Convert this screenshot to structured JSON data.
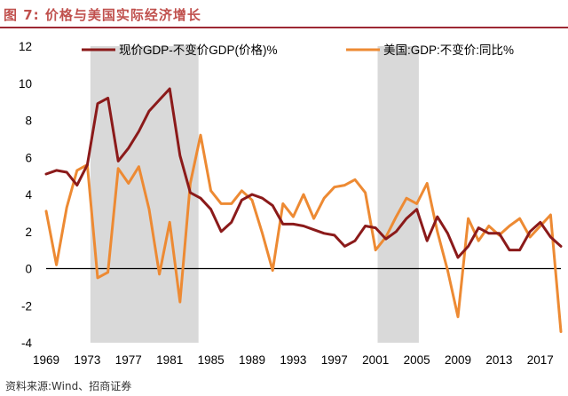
{
  "title": "图 7:  价格与美国实际经济增长",
  "source": "资料来源:Wind、招商证券",
  "colors": {
    "title": "#c0504d",
    "shade": "#d9d9d9",
    "series1": "#8b1a1a",
    "series2": "#ed8a33",
    "zero_line": "#000000"
  },
  "chart_data": {
    "type": "line",
    "xlim": [
      1969,
      2019
    ],
    "ylim": [
      -4,
      12
    ],
    "x_ticks": [
      1969,
      1973,
      1977,
      1981,
      1985,
      1989,
      1993,
      1997,
      2001,
      2005,
      2009,
      2013,
      2017
    ],
    "y_ticks": [
      -4,
      -2,
      0,
      2,
      4,
      6,
      8,
      10,
      12
    ],
    "grid": false,
    "legend_position": "top",
    "shaded_periods": [
      [
        1973.3,
        1983.8
      ],
      [
        2001.2,
        2005.2
      ]
    ],
    "series": [
      {
        "name": "现价GDP-不变价GDP(价格)%",
        "color": "#8b1a1a",
        "x": [
          1969,
          1970,
          1971,
          1972,
          1973,
          1974,
          1975,
          1976,
          1977,
          1978,
          1979,
          1980,
          1981,
          1982,
          1983,
          1984,
          1985,
          1986,
          1987,
          1988,
          1989,
          1990,
          1991,
          1992,
          1993,
          1994,
          1995,
          1996,
          1997,
          1998,
          1999,
          2000,
          2001,
          2002,
          2003,
          2004,
          2005,
          2006,
          2007,
          2008,
          2009,
          2010,
          2011,
          2012,
          2013,
          2014,
          2015,
          2016,
          2017,
          2018,
          2019
        ],
        "values": [
          5.1,
          5.3,
          5.2,
          4.5,
          5.6,
          8.9,
          9.2,
          5.8,
          6.5,
          7.4,
          8.5,
          9.1,
          9.7,
          6.1,
          4.1,
          3.8,
          3.2,
          2.0,
          2.5,
          3.7,
          4.0,
          3.8,
          3.4,
          2.4,
          2.4,
          2.3,
          2.1,
          1.9,
          1.8,
          1.2,
          1.5,
          2.3,
          2.2,
          1.6,
          2.0,
          2.7,
          3.2,
          1.5,
          2.8,
          1.9,
          0.6,
          1.2,
          2.2,
          1.9,
          1.9,
          1.0,
          1.0,
          2.0,
          2.5,
          1.7,
          1.2
        ]
      },
      {
        "name": "美国:GDP:不变价:同比%",
        "color": "#ed8a33",
        "x": [
          1969,
          1970,
          1971,
          1972,
          1973,
          1974,
          1975,
          1976,
          1977,
          1978,
          1979,
          1980,
          1981,
          1982,
          1983,
          1984,
          1985,
          1986,
          1987,
          1988,
          1989,
          1990,
          1991,
          1992,
          1993,
          1994,
          1995,
          1996,
          1997,
          1998,
          1999,
          2000,
          2001,
          2002,
          2003,
          2004,
          2005,
          2006,
          2007,
          2008,
          2009,
          2010,
          2011,
          2012,
          2013,
          2014,
          2015,
          2016,
          2017,
          2018,
          2019
        ],
        "values": [
          3.1,
          0.2,
          3.3,
          5.3,
          5.6,
          -0.5,
          -0.2,
          5.4,
          4.6,
          5.5,
          3.2,
          -0.3,
          2.5,
          -1.8,
          4.6,
          7.2,
          4.2,
          3.5,
          3.5,
          4.2,
          3.7,
          1.9,
          -0.1,
          3.5,
          2.8,
          4.0,
          2.7,
          3.8,
          4.4,
          4.5,
          4.8,
          4.1,
          1.0,
          1.7,
          2.8,
          3.8,
          3.5,
          4.6,
          2.0,
          -0.1,
          -2.6,
          2.7,
          1.5,
          2.3,
          1.8,
          2.3,
          2.7,
          1.7,
          2.3,
          2.9,
          -3.4
        ]
      }
    ]
  }
}
